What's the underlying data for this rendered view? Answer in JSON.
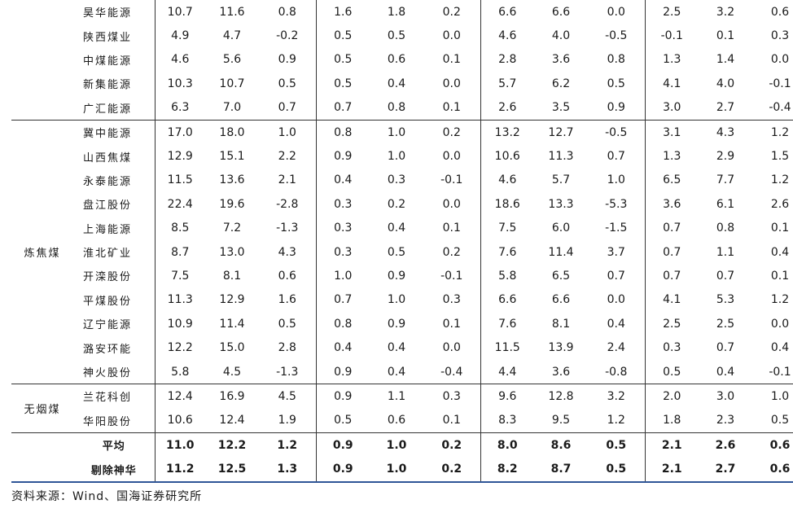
{
  "groups": [
    {
      "category": "",
      "rows": [
        {
          "name": "昊华能源",
          "values": [
            "10.7",
            "11.6",
            "0.8",
            "1.6",
            "1.8",
            "0.2",
            "6.6",
            "6.6",
            "0.0",
            "2.5",
            "3.2",
            "0.6"
          ]
        },
        {
          "name": "陕西煤业",
          "values": [
            "4.9",
            "4.7",
            "-0.2",
            "0.5",
            "0.5",
            "0.0",
            "4.6",
            "4.0",
            "-0.5",
            "-0.1",
            "0.1",
            "0.3"
          ]
        },
        {
          "name": "中煤能源",
          "values": [
            "4.6",
            "5.6",
            "0.9",
            "0.5",
            "0.6",
            "0.1",
            "2.8",
            "3.6",
            "0.8",
            "1.3",
            "1.4",
            "0.0"
          ]
        },
        {
          "name": "新集能源",
          "values": [
            "10.3",
            "10.7",
            "0.5",
            "0.5",
            "0.4",
            "0.0",
            "5.7",
            "6.2",
            "0.5",
            "4.1",
            "4.0",
            "-0.1"
          ]
        },
        {
          "name": "广汇能源",
          "values": [
            "6.3",
            "7.0",
            "0.7",
            "0.7",
            "0.8",
            "0.1",
            "2.6",
            "3.5",
            "0.9",
            "3.0",
            "2.7",
            "-0.4"
          ]
        }
      ]
    },
    {
      "category": "炼焦煤",
      "rows": [
        {
          "name": "冀中能源",
          "values": [
            "17.0",
            "18.0",
            "1.0",
            "0.8",
            "1.0",
            "0.2",
            "13.2",
            "12.7",
            "-0.5",
            "3.1",
            "4.3",
            "1.2"
          ]
        },
        {
          "name": "山西焦煤",
          "values": [
            "12.9",
            "15.1",
            "2.2",
            "0.9",
            "1.0",
            "0.0",
            "10.6",
            "11.3",
            "0.7",
            "1.3",
            "2.9",
            "1.5"
          ]
        },
        {
          "name": "永泰能源",
          "values": [
            "11.5",
            "13.6",
            "2.1",
            "0.4",
            "0.3",
            "-0.1",
            "4.6",
            "5.7",
            "1.0",
            "6.5",
            "7.7",
            "1.2"
          ]
        },
        {
          "name": "盘江股份",
          "values": [
            "22.4",
            "19.6",
            "-2.8",
            "0.3",
            "0.2",
            "0.0",
            "18.6",
            "13.3",
            "-5.3",
            "3.6",
            "6.1",
            "2.6"
          ]
        },
        {
          "name": "上海能源",
          "values": [
            "8.5",
            "7.2",
            "-1.3",
            "0.3",
            "0.4",
            "0.1",
            "7.5",
            "6.0",
            "-1.5",
            "0.7",
            "0.8",
            "0.1"
          ]
        },
        {
          "name": "淮北矿业",
          "values": [
            "8.7",
            "13.0",
            "4.3",
            "0.3",
            "0.5",
            "0.2",
            "7.6",
            "11.4",
            "3.7",
            "0.7",
            "1.1",
            "0.4"
          ]
        },
        {
          "name": "开滦股份",
          "values": [
            "7.5",
            "8.1",
            "0.6",
            "1.0",
            "0.9",
            "-0.1",
            "5.8",
            "6.5",
            "0.7",
            "0.7",
            "0.7",
            "0.1"
          ]
        },
        {
          "name": "平煤股份",
          "values": [
            "11.3",
            "12.9",
            "1.6",
            "0.7",
            "1.0",
            "0.3",
            "6.6",
            "6.6",
            "0.0",
            "4.1",
            "5.3",
            "1.2"
          ]
        },
        {
          "name": "辽宁能源",
          "values": [
            "10.9",
            "11.4",
            "0.5",
            "0.8",
            "0.9",
            "0.1",
            "7.6",
            "8.1",
            "0.4",
            "2.5",
            "2.5",
            "0.0"
          ]
        },
        {
          "name": "潞安环能",
          "values": [
            "12.2",
            "15.0",
            "2.8",
            "0.4",
            "0.4",
            "0.0",
            "11.5",
            "13.9",
            "2.4",
            "0.3",
            "0.7",
            "0.4"
          ]
        },
        {
          "name": "神火股份",
          "values": [
            "5.8",
            "4.5",
            "-1.3",
            "0.9",
            "0.4",
            "-0.4",
            "4.4",
            "3.6",
            "-0.8",
            "0.5",
            "0.4",
            "-0.1"
          ]
        }
      ]
    },
    {
      "category": "无烟煤",
      "rows": [
        {
          "name": "兰花科创",
          "values": [
            "12.4",
            "16.9",
            "4.5",
            "0.9",
            "1.1",
            "0.3",
            "9.6",
            "12.8",
            "3.2",
            "2.0",
            "3.0",
            "1.0"
          ]
        },
        {
          "name": "华阳股份",
          "values": [
            "10.6",
            "12.4",
            "1.9",
            "0.5",
            "0.6",
            "0.1",
            "8.3",
            "9.5",
            "1.2",
            "1.8",
            "2.3",
            "0.5"
          ]
        }
      ]
    }
  ],
  "summary": [
    {
      "name": "平均",
      "values": [
        "11.0",
        "12.2",
        "1.2",
        "0.9",
        "1.0",
        "0.2",
        "8.0",
        "8.6",
        "0.5",
        "2.1",
        "2.6",
        "0.6"
      ]
    },
    {
      "name": "剔除神华",
      "values": [
        "11.2",
        "12.5",
        "1.3",
        "0.9",
        "1.0",
        "0.2",
        "8.2",
        "8.7",
        "0.5",
        "2.1",
        "2.7",
        "0.6"
      ]
    }
  ],
  "source": "资料来源：Wind、国海证券研究所",
  "colors": {
    "rule": "#333333",
    "accent_rule": "#2f5597"
  }
}
